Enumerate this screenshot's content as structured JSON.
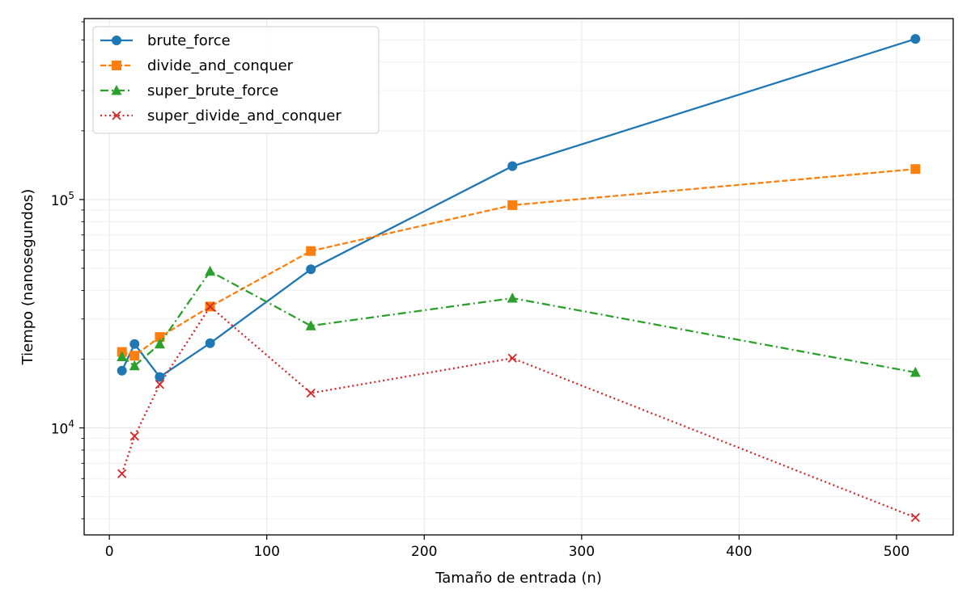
{
  "chart_data": {
    "type": "line",
    "title": "",
    "xlabel": "Tamaño de entrada (n)",
    "ylabel": "Tiempo (nanosegundos)",
    "xscale": "linear",
    "yscale": "log",
    "xlim": [
      -16,
      536
    ],
    "ylim": [
      3400,
      620000
    ],
    "grid": true,
    "legend_position": "top-left",
    "x_ticks": [
      0,
      100,
      200,
      300,
      400,
      500
    ],
    "x_tick_labels": [
      "0",
      "100",
      "200",
      "300",
      "400",
      "500"
    ],
    "y_major_ticks": [
      10000,
      100000
    ],
    "y_tick_labels": [
      {
        "base": "10",
        "exp": "4"
      },
      {
        "base": "10",
        "exp": "5"
      }
    ],
    "x": [
      8,
      16,
      32,
      64,
      128,
      256,
      512
    ],
    "series": [
      {
        "name": "brute_force",
        "color": "#1f77b4",
        "line_style": "solid",
        "marker": "circle",
        "values": [
          17800,
          23300,
          16700,
          23500,
          49500,
          140000,
          505000
        ]
      },
      {
        "name": "divide_and_conquer",
        "color": "#ff7f0e",
        "line_style": "dashed",
        "marker": "square",
        "values": [
          21500,
          20700,
          25000,
          34000,
          59500,
          94500,
          136000
        ]
      },
      {
        "name": "super_brute_force",
        "color": "#2ca02c",
        "line_style": "dashdot",
        "marker": "triangle",
        "values": [
          20500,
          18700,
          23300,
          48500,
          28000,
          37000,
          17500
        ]
      },
      {
        "name": "super_divide_and_conquer",
        "color": "#d62728",
        "line_style": "dotted",
        "marker": "x",
        "values": [
          6300,
          9200,
          15500,
          34000,
          14200,
          20200,
          4050
        ]
      }
    ]
  }
}
